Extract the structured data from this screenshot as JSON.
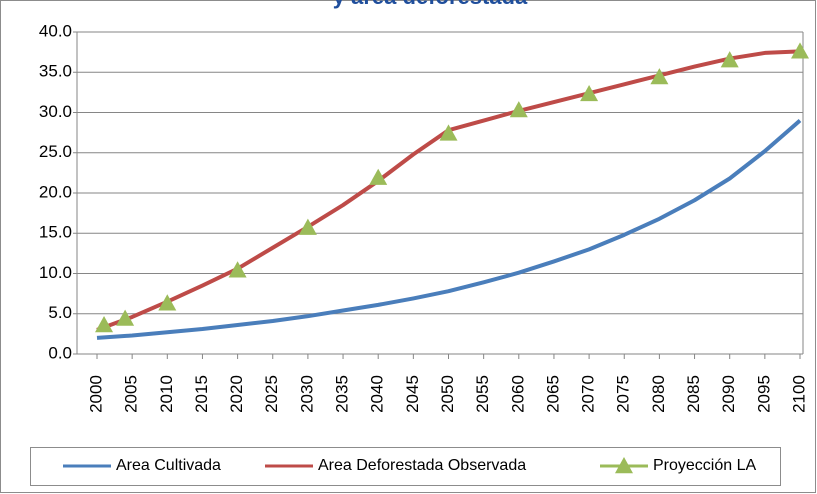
{
  "chart_data": {
    "type": "line",
    "title": "y área deforestada",
    "xlim": [
      2000,
      2100
    ],
    "xticks": [
      2000,
      2005,
      2010,
      2015,
      2020,
      2025,
      2030,
      2035,
      2040,
      2045,
      2050,
      2055,
      2060,
      2065,
      2070,
      2075,
      2080,
      2085,
      2090,
      2095,
      2100
    ],
    "ylim": [
      0,
      40
    ],
    "yticks": [
      {
        "value": 0,
        "label": "0.0"
      },
      {
        "value": 5,
        "label": "5.0"
      },
      {
        "value": 10,
        "label": "10.0"
      },
      {
        "value": 15,
        "label": "15.0"
      },
      {
        "value": 20,
        "label": "20.0"
      },
      {
        "value": 25,
        "label": "25.0"
      },
      {
        "value": 30,
        "label": "30.0"
      },
      {
        "value": 35,
        "label": "35.0"
      },
      {
        "value": 40,
        "label": "40.0"
      }
    ],
    "grid": true,
    "legend": "bottom",
    "series": [
      {
        "name": "Area Cultivada",
        "color": "#4a7ebb",
        "marker": "line",
        "x": [
          2000,
          2005,
          2010,
          2015,
          2020,
          2025,
          2030,
          2035,
          2040,
          2045,
          2050,
          2055,
          2060,
          2065,
          2070,
          2075,
          2080,
          2085,
          2090,
          2095,
          2100
        ],
        "values": [
          2.0,
          2.3,
          2.7,
          3.1,
          3.6,
          4.1,
          4.7,
          5.4,
          6.1,
          6.9,
          7.8,
          8.9,
          10.1,
          11.5,
          13.0,
          14.8,
          16.8,
          19.1,
          21.8,
          25.2,
          29.0
        ]
      },
      {
        "name": "Area Deforestada Observada",
        "color": "#be4b48",
        "marker": "line",
        "x": [
          2000,
          2005,
          2010,
          2015,
          2020,
          2025,
          2030,
          2035,
          2040,
          2045,
          2050,
          2055,
          2060,
          2065,
          2070,
          2075,
          2080,
          2085,
          2090,
          2095,
          2100
        ],
        "values": [
          3.0,
          4.6,
          6.5,
          8.5,
          10.6,
          13.2,
          15.8,
          18.5,
          21.5,
          24.8,
          27.8,
          29.0,
          30.2,
          31.3,
          32.4,
          33.5,
          34.6,
          35.7,
          36.7,
          37.4,
          37.6
        ]
      },
      {
        "name": "Proyección LA",
        "color": "#9bbb59",
        "marker": "triangle",
        "x": [
          2001,
          2004,
          2010,
          2020,
          2030,
          2040,
          2050,
          2060,
          2070,
          2080,
          2090,
          2100
        ],
        "values": [
          3.6,
          4.4,
          6.3,
          10.4,
          15.7,
          21.9,
          27.4,
          30.3,
          32.3,
          34.4,
          36.5,
          37.6
        ]
      }
    ]
  }
}
